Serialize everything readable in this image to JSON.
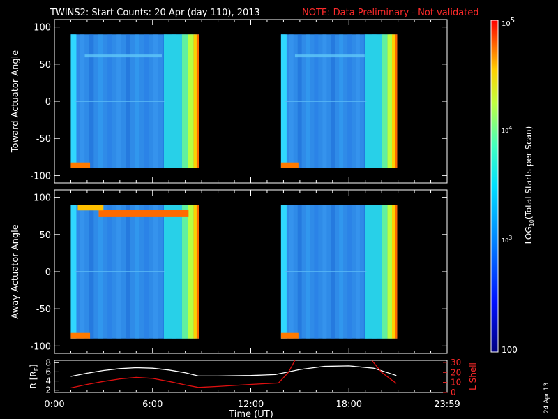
{
  "title": "TWINS2: Start Counts: 20 Apr (day 110), 2013",
  "note": "NOTE: Data Preliminary - Not validated",
  "date_stamp": "24 Apr 13",
  "colors": {
    "background": "#000000",
    "axes": "#ffffff",
    "note": "#ff2a2a",
    "r_line": "#ffffff",
    "lshell_line": "#e01010"
  },
  "chart_data": [
    {
      "type": "heatmap",
      "ylabel": "Toward Actuator Angle",
      "ylim": [
        -110,
        110
      ],
      "yticks": [
        "100",
        "50",
        "0",
        "-50",
        "-100"
      ],
      "xlim": [
        0,
        24
      ],
      "data_blocks_hours": [
        [
          1.0,
          8.85
        ],
        [
          13.85,
          20.95
        ]
      ],
      "approx_log10_counts": 3.0
    },
    {
      "type": "heatmap",
      "ylabel": "Away Actuator Angle",
      "ylim": [
        -110,
        110
      ],
      "yticks": [
        "100",
        "50",
        "0",
        "-50",
        "-100"
      ],
      "xlim": [
        0,
        24
      ],
      "data_blocks_hours": [
        [
          1.0,
          8.85
        ],
        [
          13.85,
          20.95
        ]
      ],
      "approx_log10_counts": 3.0
    },
    {
      "type": "line",
      "xlabel": "Time (UT)",
      "xticks": [
        "0:00",
        "6:00",
        "12:00",
        "18:00",
        "23:59"
      ],
      "xtick_hours": [
        0,
        6,
        12,
        18,
        24
      ],
      "left_axis": {
        "label": "R [R",
        "label_sub": "E",
        "label_end": "]",
        "ticks": [
          "2",
          "4",
          "6",
          "8"
        ],
        "ylim": [
          1.5,
          8.5
        ]
      },
      "right_axis": {
        "label": "L Shell",
        "ticks": [
          "0",
          "10",
          "20",
          "30"
        ],
        "ylim": [
          0,
          32
        ]
      },
      "series": [
        {
          "axis": "left",
          "x": [
            1,
            2,
            3,
            4,
            5,
            6,
            7,
            8,
            8.8,
            10,
            12,
            13.5,
            15,
            16.5,
            18,
            19.5,
            20.9
          ],
          "y": [
            5.0,
            5.7,
            6.3,
            6.7,
            6.9,
            6.8,
            6.4,
            5.8,
            5.1,
            5.1,
            5.2,
            5.4,
            6.5,
            7.2,
            7.3,
            6.8,
            5.2
          ]
        },
        {
          "axis": "right",
          "x": [
            1,
            2,
            3,
            4,
            5,
            6,
            7,
            8,
            8.8,
            10,
            12,
            13.7,
            14.3,
            14.7
          ],
          "y": [
            4.5,
            8.0,
            11.0,
            13.5,
            15.0,
            14.0,
            11.0,
            7.5,
            5.0,
            6.0,
            8.0,
            9.5,
            20.0,
            32.0
          ]
        },
        {
          "axis": "right",
          "x": [
            19.4,
            20.0,
            20.9
          ],
          "y": [
            32.0,
            20.0,
            9.0
          ]
        }
      ]
    },
    {
      "type": "colorbar",
      "label": "LOG",
      "label_sub": "10",
      "label_rest": "(Total Starts per Scan)",
      "range_log10": [
        2,
        5
      ],
      "top_tick": "10",
      "top_tick_sup": "5",
      "mid_tick": "10",
      "mid_tick_sup": "4",
      "low_tick": "10",
      "low_tick_sup": "3",
      "bottom_tick": "100"
    }
  ]
}
